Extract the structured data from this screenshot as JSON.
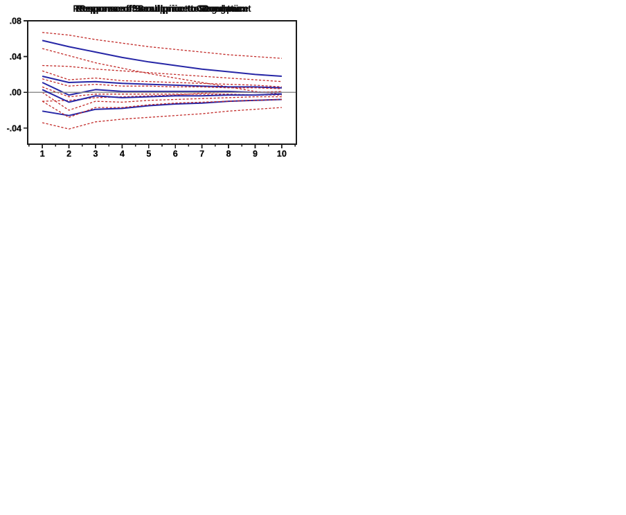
{
  "figure": {
    "kind": "impulse-response-panels",
    "layout": "2 columns x 3 rows, bottom-right cell empty",
    "background": "#ffffff"
  },
  "colors": {
    "response_line": "#2626a6",
    "confidence_band": "#c22a28",
    "zero_line": "#8f8f8f",
    "frame": "#1a1a1a",
    "text": "#0d0d0d"
  },
  "chart_data": [
    {
      "type": "line",
      "title": "Response of Seoul price to Seoul price",
      "x": [
        1,
        2,
        3,
        4,
        5,
        6,
        7,
        8,
        9,
        10
      ],
      "x_tick_labels": [
        "1",
        "2",
        "3",
        "4",
        "5",
        "6",
        "7",
        "8",
        "9",
        "10"
      ],
      "y_ticks": [
        0.08,
        0.04,
        0.0,
        -0.04
      ],
      "y_tick_labels": [
        ".08",
        ".04",
        ".00",
        "-.04"
      ],
      "xlim": [
        0.45,
        10.55
      ],
      "ylim": [
        -0.058,
        0.08
      ],
      "grid": false,
      "legend": "none",
      "zero_line": true,
      "series": [
        {
          "name": "response",
          "style": "solid",
          "values": [
            0.058,
            0.051,
            0.045,
            0.039,
            0.034,
            0.03,
            0.026,
            0.023,
            0.02,
            0.018
          ]
        },
        {
          "name": "ci-upper",
          "style": "dashed",
          "values": [
            0.067,
            0.064,
            0.059,
            0.055,
            0.051,
            0.048,
            0.045,
            0.042,
            0.04,
            0.038
          ]
        },
        {
          "name": "ci-lower",
          "style": "dashed",
          "values": [
            0.049,
            0.041,
            0.033,
            0.027,
            0.021,
            0.016,
            0.011,
            0.006,
            0.001,
            -0.002
          ]
        }
      ]
    },
    {
      "type": "line",
      "title": "Response of Seoul price to Gangnam",
      "x": [
        1,
        2,
        3,
        4,
        5,
        6,
        7,
        8,
        9,
        10
      ],
      "x_tick_labels": [
        "1",
        "2",
        "3",
        "4",
        "5",
        "6",
        "7",
        "8",
        "9",
        "10"
      ],
      "y_ticks": [
        0.08,
        0.04,
        0.0,
        -0.04
      ],
      "y_tick_labels": [
        ".08",
        ".04",
        ".00",
        "-.04"
      ],
      "xlim": [
        0.45,
        10.55
      ],
      "ylim": [
        -0.058,
        0.08
      ],
      "grid": false,
      "legend": "none",
      "zero_line": true,
      "series": [
        {
          "name": "response",
          "style": "solid",
          "values": [
            0.011,
            -0.003,
            0.003,
            0.001,
            0.001,
            0.001,
            0.001,
            0.001,
            0.0,
            0.0
          ]
        },
        {
          "name": "ci-upper",
          "style": "dashed",
          "values": [
            0.024,
            0.014,
            0.016,
            0.013,
            0.012,
            0.011,
            0.01,
            0.009,
            0.008,
            0.006
          ]
        },
        {
          "name": "ci-lower",
          "style": "dashed",
          "values": [
            0.0,
            -0.02,
            -0.01,
            -0.011,
            -0.009,
            -0.008,
            -0.007,
            -0.006,
            -0.005,
            -0.005
          ]
        }
      ]
    },
    {
      "type": "line",
      "title": "Response of Seoul price to Downturn",
      "x": [
        1,
        2,
        3,
        4,
        5,
        6,
        7,
        8,
        9,
        10
      ],
      "x_tick_labels": [
        "1",
        "2",
        "3",
        "4",
        "5",
        "6",
        "7",
        "8",
        "9",
        "10"
      ],
      "y_ticks": [
        0.08,
        0.04,
        0.0,
        -0.04
      ],
      "y_tick_labels": [
        ".08",
        ".04",
        ".00",
        "-.04"
      ],
      "xlim": [
        0.45,
        10.55
      ],
      "ylim": [
        -0.058,
        0.08
      ],
      "grid": false,
      "legend": "none",
      "zero_line": true,
      "series": [
        {
          "name": "response",
          "style": "solid",
          "values": [
            -0.021,
            -0.026,
            -0.019,
            -0.018,
            -0.015,
            -0.013,
            -0.012,
            -0.01,
            -0.009,
            -0.008
          ]
        },
        {
          "name": "ci-upper",
          "style": "dashed",
          "values": [
            -0.01,
            -0.009,
            -0.006,
            -0.005,
            -0.004,
            -0.003,
            -0.001,
            0.0,
            0.0,
            0.001
          ]
        },
        {
          "name": "ci-lower",
          "style": "dashed",
          "values": [
            -0.034,
            -0.041,
            -0.033,
            -0.03,
            -0.028,
            -0.026,
            -0.024,
            -0.021,
            -0.019,
            -0.017
          ]
        }
      ]
    },
    {
      "type": "line",
      "title": "Response of Seoul price to Government",
      "x": [
        1,
        2,
        3,
        4,
        5,
        6,
        7,
        8,
        9,
        10
      ],
      "x_tick_labels": [
        "1",
        "2",
        "3",
        "4",
        "5",
        "6",
        "7",
        "8",
        "9",
        "10"
      ],
      "y_ticks": [
        0.08,
        0.04,
        0.0,
        -0.04
      ],
      "y_tick_labels": [
        ".08",
        ".04",
        ".00",
        "-.04"
      ],
      "xlim": [
        0.45,
        10.55
      ],
      "ylim": [
        -0.058,
        0.08
      ],
      "grid": false,
      "legend": "none",
      "zero_line": true,
      "series": [
        {
          "name": "response",
          "style": "solid",
          "values": [
            0.018,
            0.011,
            0.012,
            0.01,
            0.009,
            0.008,
            0.007,
            0.006,
            0.006,
            0.005
          ]
        },
        {
          "name": "ci-upper",
          "style": "dashed",
          "values": [
            0.03,
            0.029,
            0.026,
            0.024,
            0.022,
            0.02,
            0.018,
            0.016,
            0.014,
            0.012
          ]
        },
        {
          "name": "ci-lower",
          "style": "dashed",
          "values": [
            0.006,
            -0.005,
            -0.002,
            -0.002,
            -0.002,
            -0.002,
            -0.002,
            -0.002,
            -0.003,
            -0.003
          ]
        }
      ]
    },
    {
      "type": "line",
      "title": "Response of Seoul price to Regulation",
      "x": [
        1,
        2,
        3,
        4,
        5,
        6,
        7,
        8,
        9,
        10
      ],
      "x_tick_labels": [
        "1",
        "2",
        "3",
        "4",
        "5",
        "6",
        "7",
        "8",
        "9",
        "10"
      ],
      "y_ticks": [
        0.08,
        0.04,
        0.0,
        -0.04
      ],
      "y_tick_labels": [
        ".08",
        ".04",
        ".00",
        "-.04"
      ],
      "xlim": [
        0.45,
        10.55
      ],
      "ylim": [
        -0.058,
        0.08
      ],
      "grid": false,
      "legend": "none",
      "zero_line": true,
      "series": [
        {
          "name": "response",
          "style": "solid",
          "values": [
            0.003,
            -0.011,
            -0.004,
            -0.006,
            -0.005,
            -0.004,
            -0.004,
            -0.003,
            -0.003,
            -0.002
          ]
        },
        {
          "name": "ci-upper",
          "style": "dashed",
          "values": [
            0.015,
            0.007,
            0.009,
            0.007,
            0.007,
            0.006,
            0.006,
            0.005,
            0.005,
            0.004
          ]
        },
        {
          "name": "ci-lower",
          "style": "dashed",
          "values": [
            -0.01,
            -0.028,
            -0.017,
            -0.017,
            -0.014,
            -0.012,
            -0.011,
            -0.01,
            -0.009,
            -0.008
          ]
        }
      ]
    }
  ]
}
